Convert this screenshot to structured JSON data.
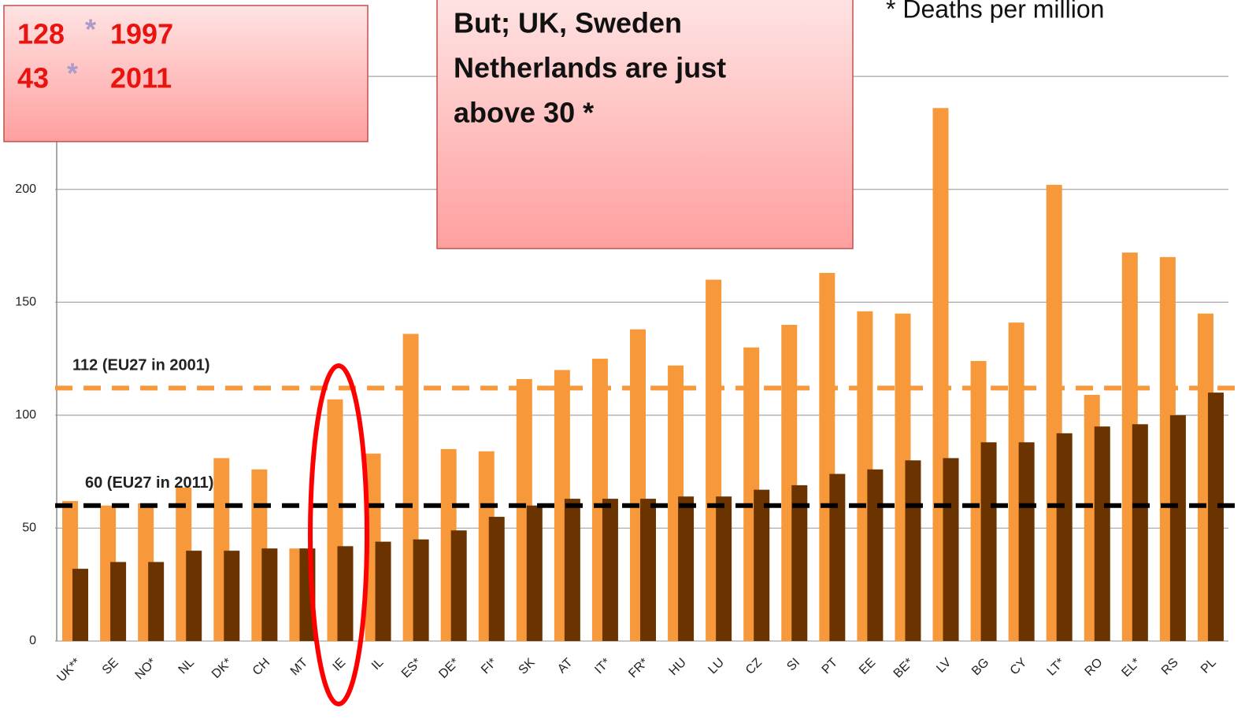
{
  "chart_data": {
    "type": "bar",
    "categories": [
      "UK**",
      "SE",
      "NO*",
      "NL",
      "DK*",
      "CH",
      "MT",
      "IE",
      "IL",
      "ES*",
      "DE*",
      "FI*",
      "SK",
      "AT",
      "IT*",
      "FR*",
      "HU",
      "LU",
      "CZ",
      "SI",
      "PT",
      "EE",
      "BE*",
      "LV",
      "BG",
      "CY",
      "LT*",
      "RO",
      "EL*",
      "RS",
      "PL"
    ],
    "series": [
      {
        "color": "#f7993b",
        "values": [
          62,
          60,
          61,
          68,
          81,
          76,
          41,
          107,
          83,
          136,
          85,
          84,
          116,
          120,
          125,
          138,
          122,
          160,
          130,
          140,
          163,
          146,
          145,
          236,
          124,
          141,
          202,
          109,
          172,
          170,
          145
        ]
      },
      {
        "color": "#6b3300",
        "values": [
          32,
          35,
          35,
          40,
          40,
          41,
          41,
          42,
          44,
          45,
          49,
          55,
          60,
          63,
          63,
          63,
          64,
          64,
          67,
          69,
          74,
          76,
          80,
          81,
          88,
          88,
          92,
          95,
          96,
          100,
          110
        ]
      }
    ],
    "ylim": [
      0,
      280
    ],
    "yticks": [
      0,
      50,
      100,
      150,
      200,
      250
    ],
    "grid": true,
    "reference_lines": [
      {
        "value": 112,
        "label": "112 (EU27 in 2001)",
        "color": "#f7993b"
      },
      {
        "value": 60,
        "label": "60 (EU27 in 2011)",
        "color": "#000000"
      }
    ],
    "annotations": {
      "note": "* Deaths per million",
      "box_left": [
        [
          "128",
          "*",
          "1997"
        ],
        [
          "43",
          "*",
          "2011"
        ]
      ],
      "box_center": [
        "But; UK, Sweden",
        "Netherlands are just",
        "above 30 *"
      ]
    }
  }
}
